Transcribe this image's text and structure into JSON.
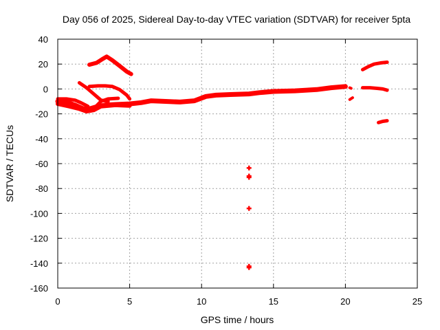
{
  "chart_data": {
    "type": "scatter",
    "title": "Day 056 of 2025, Sidereal Day-to-day VTEC variation (SDTVAR) for receiver 5pta",
    "xlabel": "GPS time / hours",
    "ylabel": "SDTVAR / TECUs",
    "xlim": [
      0,
      25
    ],
    "ylim": [
      -160,
      40
    ],
    "xticks": [
      0,
      5,
      10,
      15,
      20,
      25
    ],
    "yticks": [
      40,
      20,
      0,
      -20,
      -40,
      -60,
      -80,
      -100,
      -120,
      -140,
      -160
    ],
    "grid": true,
    "color": "#ff0000",
    "series": [
      {
        "name": "main-band",
        "width": 7,
        "points": [
          [
            0,
            -10
          ],
          [
            0.7,
            -11
          ],
          [
            1.2,
            -13
          ],
          [
            1.8,
            -16
          ],
          [
            2.2,
            -16
          ],
          [
            2.8,
            -14
          ],
          [
            3.3,
            -13
          ],
          [
            4,
            -12.5
          ],
          [
            5,
            -12
          ],
          [
            5.8,
            -11
          ],
          [
            6.5,
            -9.5
          ],
          [
            7.5,
            -10
          ],
          [
            8.5,
            -10.5
          ],
          [
            9.5,
            -9.5
          ],
          [
            10.3,
            -6
          ],
          [
            11,
            -5
          ],
          [
            12,
            -4.5
          ],
          [
            13.3,
            -4
          ],
          [
            14,
            -3
          ],
          [
            15,
            -2
          ],
          [
            16.5,
            -1.5
          ],
          [
            18,
            -0.5
          ],
          [
            19,
            1
          ],
          [
            20,
            2
          ]
        ]
      },
      {
        "name": "lower-band",
        "width": 6,
        "points": [
          [
            0,
            -12
          ],
          [
            0.8,
            -14
          ],
          [
            1.5,
            -16
          ],
          [
            2,
            -18
          ],
          [
            2.5,
            -17
          ],
          [
            3,
            -14
          ],
          [
            4,
            -13
          ],
          [
            5,
            -13.5
          ]
        ]
      },
      {
        "name": "start-upper",
        "width": 5,
        "points": [
          [
            0,
            -8
          ],
          [
            0.6,
            -8
          ],
          [
            1.2,
            -9
          ],
          [
            1.6,
            -11
          ],
          [
            2.1,
            -14
          ]
        ]
      },
      {
        "name": "arc-down",
        "width": 5,
        "points": [
          [
            1.5,
            5
          ],
          [
            2,
            1
          ],
          [
            2.5,
            -4
          ],
          [
            3,
            -9
          ],
          [
            3.5,
            -10
          ]
        ]
      },
      {
        "name": "arc-up-back",
        "width": 5,
        "points": [
          [
            2.4,
            -17
          ],
          [
            3,
            -10
          ],
          [
            3.5,
            -8
          ],
          [
            4.2,
            -7.5
          ]
        ]
      },
      {
        "name": "bump",
        "width": 5,
        "points": [
          [
            2.2,
            2
          ],
          [
            2.8,
            2.5
          ],
          [
            3.3,
            2.5
          ],
          [
            3.8,
            2
          ],
          [
            4.3,
            -0.5
          ],
          [
            4.8,
            -5
          ],
          [
            5,
            -8
          ]
        ]
      },
      {
        "name": "peak",
        "width": 6,
        "points": [
          [
            2.2,
            19.5
          ],
          [
            2.7,
            21
          ],
          [
            3.1,
            24
          ],
          [
            3.4,
            26
          ],
          [
            3.8,
            23
          ],
          [
            4.3,
            18.5
          ],
          [
            4.8,
            14
          ],
          [
            5.1,
            12
          ]
        ]
      },
      {
        "name": "after-gap",
        "width": 4,
        "points": [
          [
            20.3,
            1
          ],
          [
            20.4,
            0.5
          ]
        ]
      },
      {
        "name": "dip",
        "width": 4,
        "points": [
          [
            20.3,
            -8.5
          ],
          [
            20.5,
            -7
          ]
        ]
      },
      {
        "name": "late-upper",
        "width": 5,
        "points": [
          [
            21.2,
            15.5
          ],
          [
            21.6,
            18
          ],
          [
            22,
            20
          ],
          [
            22.5,
            21
          ],
          [
            22.9,
            21.5
          ]
        ]
      },
      {
        "name": "late-mid",
        "width": 5,
        "points": [
          [
            21.2,
            1
          ],
          [
            21.7,
            1
          ],
          [
            22.2,
            0.5
          ],
          [
            22.6,
            0
          ],
          [
            22.9,
            -1
          ]
        ]
      },
      {
        "name": "late-low",
        "width": 5,
        "points": [
          [
            22.3,
            -27
          ],
          [
            22.6,
            -26
          ],
          [
            22.9,
            -25.5
          ]
        ]
      }
    ],
    "isolated_points": [
      [
        13.3,
        -63.5
      ],
      [
        13.3,
        -70
      ],
      [
        13.3,
        -71
      ],
      [
        13.3,
        -96
      ],
      [
        13.3,
        -142.5
      ],
      [
        13.3,
        -143.5
      ]
    ]
  }
}
